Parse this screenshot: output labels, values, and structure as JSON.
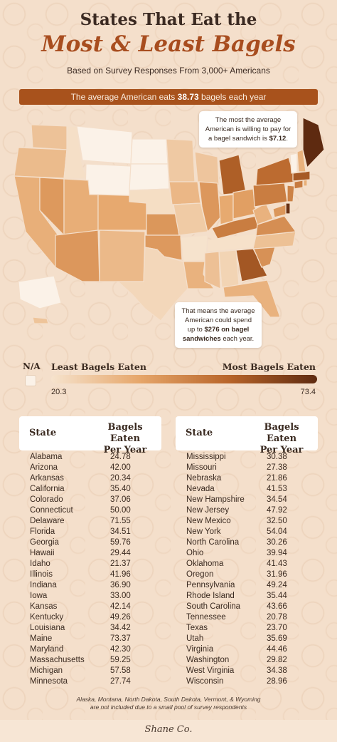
{
  "title_line1": "States That Eat the",
  "title_line2": "Most & Least Bagels",
  "subtitle": "Based on Survey Responses From 3,000+ Americans",
  "banner": {
    "prefix": "The average American eats ",
    "value": "38.73",
    "suffix": " bagels each year"
  },
  "callout_top": {
    "text": "The most the average American is willing to pay for a bagel sandwich is ",
    "value": "$7.12",
    "end": "."
  },
  "callout_bottom": {
    "text": "That means the average American could spend up to ",
    "value": "$276 on bagel sandwiches",
    "end": " each year."
  },
  "legend": {
    "na_label": "N/A",
    "low_label": "Least Bagels Eaten",
    "high_label": "Most Bagels Eaten",
    "min": "20.3",
    "max": "73.4"
  },
  "table_headers": {
    "state": "State",
    "value_line1": "Bagels Eaten",
    "value_line2": "Per Year"
  },
  "footnote_line1": "Alaska, Montana, North Dakota, South Dakota, Vermont, & Wyoming",
  "footnote_line2": "are not included due to a small pool of survey respondents",
  "logo": "Shane Co.",
  "colors": {
    "accent": "#a8521c",
    "title_accent": "#a84d1f",
    "background": "#f4dfcb"
  },
  "chart_data": {
    "type": "table",
    "title": "States That Eat the Most & Least Bagels",
    "columns": [
      "State",
      "Bagels Eaten Per Year"
    ],
    "rows": [
      [
        "Alabama",
        "24.78"
      ],
      [
        "Arizona",
        "42.00"
      ],
      [
        "Arkansas",
        "20.34"
      ],
      [
        "California",
        "35.40"
      ],
      [
        "Colorado",
        "37.06"
      ],
      [
        "Connecticut",
        "50.00"
      ],
      [
        "Delaware",
        "71.55"
      ],
      [
        "Florida",
        "34.51"
      ],
      [
        "Georgia",
        "59.76"
      ],
      [
        "Hawaii",
        "29.44"
      ],
      [
        "Idaho",
        "21.37"
      ],
      [
        "Illinois",
        "41.96"
      ],
      [
        "Indiana",
        "36.90"
      ],
      [
        "Iowa",
        "33.00"
      ],
      [
        "Kansas",
        "42.14"
      ],
      [
        "Kentucky",
        "49.26"
      ],
      [
        "Louisiana",
        "34.42"
      ],
      [
        "Maine",
        "73.37"
      ],
      [
        "Maryland",
        "42.30"
      ],
      [
        "Massachusetts",
        "59.25"
      ],
      [
        "Michigan",
        "57.58"
      ],
      [
        "Minnesota",
        "27.74"
      ],
      [
        "Mississippi",
        "30.38"
      ],
      [
        "Missouri",
        "27.38"
      ],
      [
        "Nebraska",
        "21.86"
      ],
      [
        "Nevada",
        "41.53"
      ],
      [
        "New Hampshire",
        "34.54"
      ],
      [
        "New Jersey",
        "47.92"
      ],
      [
        "New Mexico",
        "32.50"
      ],
      [
        "New York",
        "54.04"
      ],
      [
        "North Carolina",
        "30.26"
      ],
      [
        "Ohio",
        "39.94"
      ],
      [
        "Oklahoma",
        "41.43"
      ],
      [
        "Oregon",
        "31.96"
      ],
      [
        "Pennsylvania",
        "49.24"
      ],
      [
        "Rhode Island",
        "35.44"
      ],
      [
        "South Carolina",
        "43.66"
      ],
      [
        "Tennessee",
        "20.78"
      ],
      [
        "Texas",
        "23.70"
      ],
      [
        "Utah",
        "35.69"
      ],
      [
        "Virginia",
        "44.46"
      ],
      [
        "Washington",
        "29.82"
      ],
      [
        "West Virginia",
        "34.38"
      ],
      [
        "Wisconsin",
        "28.96"
      ]
    ],
    "color_scale": {
      "min": 20.3,
      "max": 73.4
    }
  }
}
